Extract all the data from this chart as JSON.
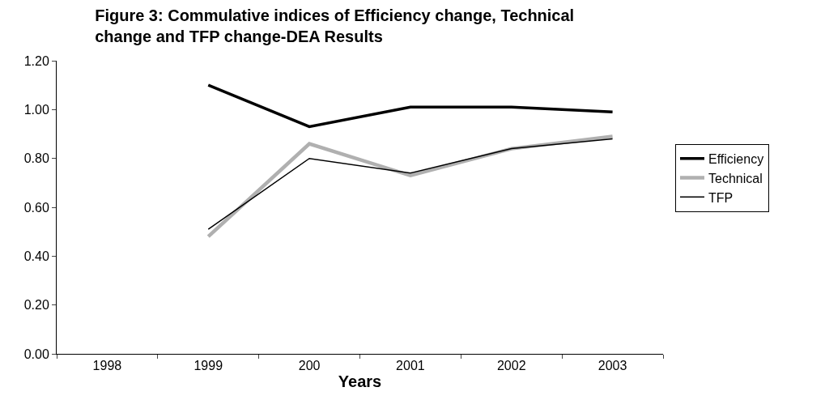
{
  "chart_data": {
    "type": "line",
    "title": "Figure 3: Commulative indices of Efficiency change, Technical change and TFP change-DEA Results",
    "xlabel": "Years",
    "categories": [
      "1998",
      "1999",
      "200",
      "2001",
      "2002",
      "2003"
    ],
    "series": [
      {
        "name": "Efficiency",
        "color": "#000000",
        "values": [
          null,
          1.1,
          0.93,
          1.01,
          1.01,
          0.99
        ]
      },
      {
        "name": "Technical",
        "color": "#b0b0b0",
        "values": [
          null,
          0.48,
          0.86,
          0.73,
          0.84,
          0.89
        ]
      },
      {
        "name": "TFP",
        "color": "#000000",
        "values": [
          null,
          0.51,
          0.8,
          0.74,
          0.84,
          0.88
        ]
      }
    ],
    "ylim": [
      0,
      1.2
    ],
    "yticks": [
      {
        "value": 0,
        "label": "0.00"
      },
      {
        "value": 0.2,
        "label": "0.20"
      },
      {
        "value": 0.4,
        "label": "0.40"
      },
      {
        "value": 0.6,
        "label": "0.60"
      },
      {
        "value": 0.8,
        "label": "0.80"
      },
      {
        "value": 1.0,
        "label": "1.00"
      },
      {
        "value": 1.2,
        "label": "1.20"
      }
    ],
    "legend": "right",
    "marker": "none",
    "line_style": "solid"
  }
}
